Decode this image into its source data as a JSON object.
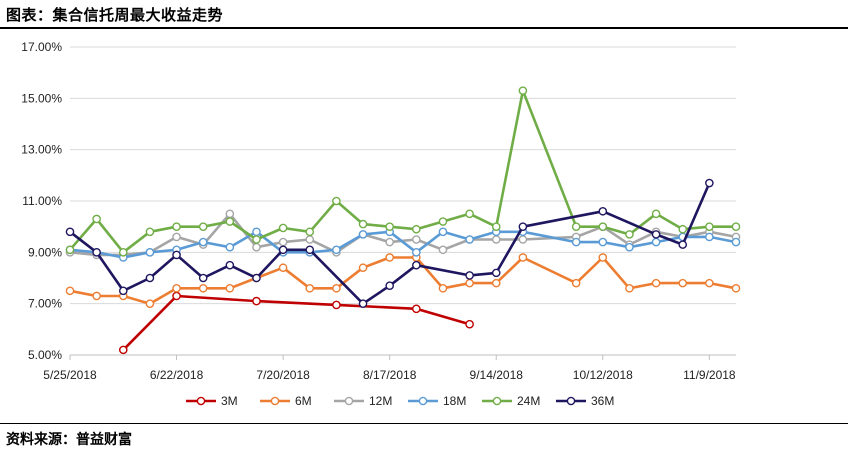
{
  "header": {
    "title": "图表：集合信托周最大收益走势"
  },
  "footer": {
    "source": "资料来源：普益财富"
  },
  "chart_data": {
    "type": "line",
    "title": "",
    "xlabel": "",
    "ylabel": "",
    "ylim": [
      5.0,
      17.0
    ],
    "y_ticks": [
      "5.00%",
      "7.00%",
      "9.00%",
      "11.00%",
      "13.00%",
      "15.00%",
      "17.00%"
    ],
    "x_ticks": [
      {
        "label": "5/25/2018",
        "index": 0
      },
      {
        "label": "6/22/2018",
        "index": 4
      },
      {
        "label": "7/20/2018",
        "index": 8
      },
      {
        "label": "8/17/2018",
        "index": 12
      },
      {
        "label": "9/14/2018",
        "index": 16
      },
      {
        "label": "10/12/2018",
        "index": 20
      },
      {
        "label": "11/9/2018",
        "index": 24
      }
    ],
    "x_count": 26,
    "grid": "horizontal",
    "legend_position": "bottom",
    "series": [
      {
        "name": "3M",
        "color": "#c00000",
        "x": [
          2,
          4,
          7,
          10,
          13,
          15
        ],
        "y": [
          5.2,
          7.3,
          7.1,
          6.95,
          6.8,
          6.2
        ]
      },
      {
        "name": "6M",
        "color": "#ed7d31",
        "x": [
          0,
          1,
          2,
          3,
          4,
          5,
          6,
          7,
          8,
          9,
          10,
          11,
          12,
          13,
          14,
          15,
          16,
          17,
          19,
          20,
          21,
          22,
          23,
          24,
          25
        ],
        "y": [
          7.5,
          7.3,
          7.3,
          7.0,
          7.6,
          7.6,
          7.6,
          8.0,
          8.4,
          7.6,
          7.6,
          8.4,
          8.8,
          8.8,
          7.6,
          7.8,
          7.8,
          8.8,
          7.8,
          8.8,
          7.6,
          7.8,
          7.8,
          7.8,
          7.6
        ]
      },
      {
        "name": "12M",
        "color": "#a5a5a5",
        "x": [
          0,
          1,
          2,
          3,
          4,
          5,
          6,
          7,
          8,
          9,
          10,
          11,
          12,
          13,
          14,
          15,
          16,
          17,
          19,
          20,
          21,
          22,
          23,
          24,
          25
        ],
        "y": [
          9.0,
          8.9,
          8.9,
          9.0,
          9.6,
          9.3,
          10.5,
          9.2,
          9.4,
          9.5,
          9.0,
          9.7,
          9.4,
          9.5,
          9.1,
          9.5,
          9.5,
          9.5,
          9.6,
          10.0,
          9.3,
          9.8,
          9.6,
          9.8,
          9.6
        ]
      },
      {
        "name": "18M",
        "color": "#5b9bd5",
        "x": [
          0,
          1,
          2,
          3,
          4,
          5,
          6,
          7,
          8,
          9,
          10,
          11,
          12,
          13,
          14,
          15,
          16,
          17,
          19,
          20,
          21,
          22,
          23,
          24,
          25
        ],
        "y": [
          9.1,
          9.0,
          8.8,
          9.0,
          9.1,
          9.4,
          9.2,
          9.8,
          9.0,
          9.0,
          9.1,
          9.7,
          9.8,
          9.0,
          9.8,
          9.5,
          9.8,
          9.8,
          9.4,
          9.4,
          9.2,
          9.4,
          9.6,
          9.6,
          9.4
        ]
      },
      {
        "name": "24M",
        "color": "#70ad47",
        "x": [
          0,
          1,
          2,
          3,
          4,
          5,
          6,
          7,
          8,
          9,
          10,
          11,
          12,
          13,
          14,
          15,
          16,
          17,
          19,
          20,
          21,
          22,
          23,
          24,
          25
        ],
        "y": [
          9.1,
          10.3,
          9.0,
          9.8,
          10.0,
          10.0,
          10.2,
          9.5,
          9.95,
          9.8,
          11.0,
          10.1,
          10.0,
          9.9,
          10.2,
          10.5,
          10.0,
          15.3,
          10.0,
          10.0,
          9.7,
          10.5,
          9.9,
          10.0,
          10.0
        ]
      },
      {
        "name": "36M",
        "color": "#1f1660",
        "x": [
          0,
          1,
          2,
          3,
          4,
          5,
          6,
          7,
          8,
          9,
          11,
          12,
          13,
          15,
          16,
          17,
          20,
          22,
          23,
          24
        ],
        "y": [
          9.8,
          9.0,
          7.5,
          8.0,
          8.9,
          8.0,
          8.5,
          8.0,
          9.1,
          9.1,
          7.0,
          7.7,
          8.5,
          8.1,
          8.2,
          10.0,
          10.6,
          9.7,
          9.3,
          11.7
        ]
      }
    ]
  }
}
